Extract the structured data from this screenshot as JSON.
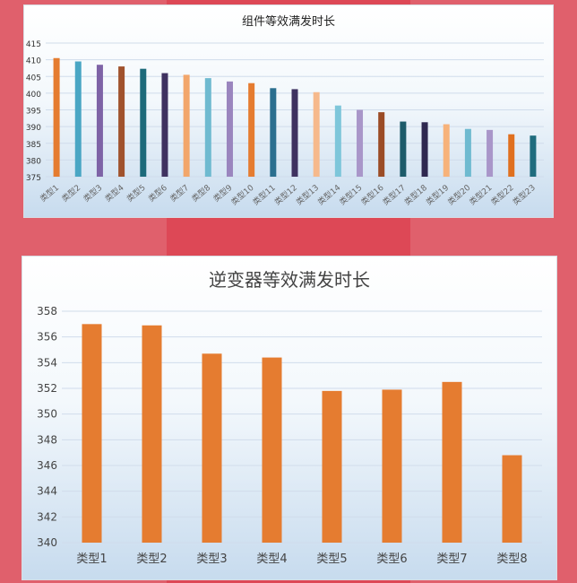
{
  "colors": {
    "background": "#e0606c",
    "band": "#dd4856",
    "panel_top": "#ffffff",
    "panel_bottom": "#c7dbee",
    "grid": "#d0dceb",
    "inverter_bar": "#e57c30"
  },
  "chart_data": [
    {
      "type": "bar",
      "title": "组件等效满发时长",
      "categories": [
        "类型1",
        "类型2",
        "类型3",
        "类型4",
        "类型5",
        "类型6",
        "类型7",
        "类型8",
        "类型9",
        "类型10",
        "类型11",
        "类型12",
        "类型13",
        "类型14",
        "类型15",
        "类型16",
        "类型17",
        "类型18",
        "类型19",
        "类型20",
        "类型21",
        "类型22",
        "类型23"
      ],
      "values": [
        410.5,
        409.5,
        408.5,
        408,
        407.3,
        406,
        405.5,
        404.5,
        403.5,
        403,
        401.5,
        401.2,
        400.3,
        396.3,
        395,
        394.3,
        391.5,
        391.3,
        390.7,
        389.3,
        389,
        387.7,
        387.3
      ],
      "bar_colors": [
        "#e57c30",
        "#4aa6c4",
        "#7e63a6",
        "#a0522d",
        "#1d6a7a",
        "#3f3260",
        "#f2a66b",
        "#6fbad0",
        "#9a85be",
        "#e57c30",
        "#2b6f8f",
        "#3f3260",
        "#f6b98c",
        "#7ec6da",
        "#a996c9",
        "#9b4c26",
        "#1d5b6a",
        "#2f2850",
        "#f7b27a",
        "#6fbad0",
        "#a996c9",
        "#e0701f",
        "#1f6c7e"
      ],
      "ylim": [
        375,
        415
      ],
      "yticks": [
        375,
        380,
        385,
        390,
        395,
        400,
        405,
        410,
        415
      ],
      "grid": true,
      "legend": "none"
    },
    {
      "type": "bar",
      "title": "逆变器等效满发时长",
      "categories": [
        "类型1",
        "类型2",
        "类型3",
        "类型4",
        "类型5",
        "类型6",
        "类型7",
        "类型8"
      ],
      "values": [
        357,
        356.9,
        354.7,
        354.4,
        351.8,
        351.9,
        352.5,
        346.8
      ],
      "color": "#e57c30",
      "ylim": [
        340,
        358
      ],
      "yticks": [
        340,
        342,
        344,
        346,
        348,
        350,
        352,
        354,
        356,
        358
      ],
      "grid": true,
      "legend": "none"
    }
  ]
}
